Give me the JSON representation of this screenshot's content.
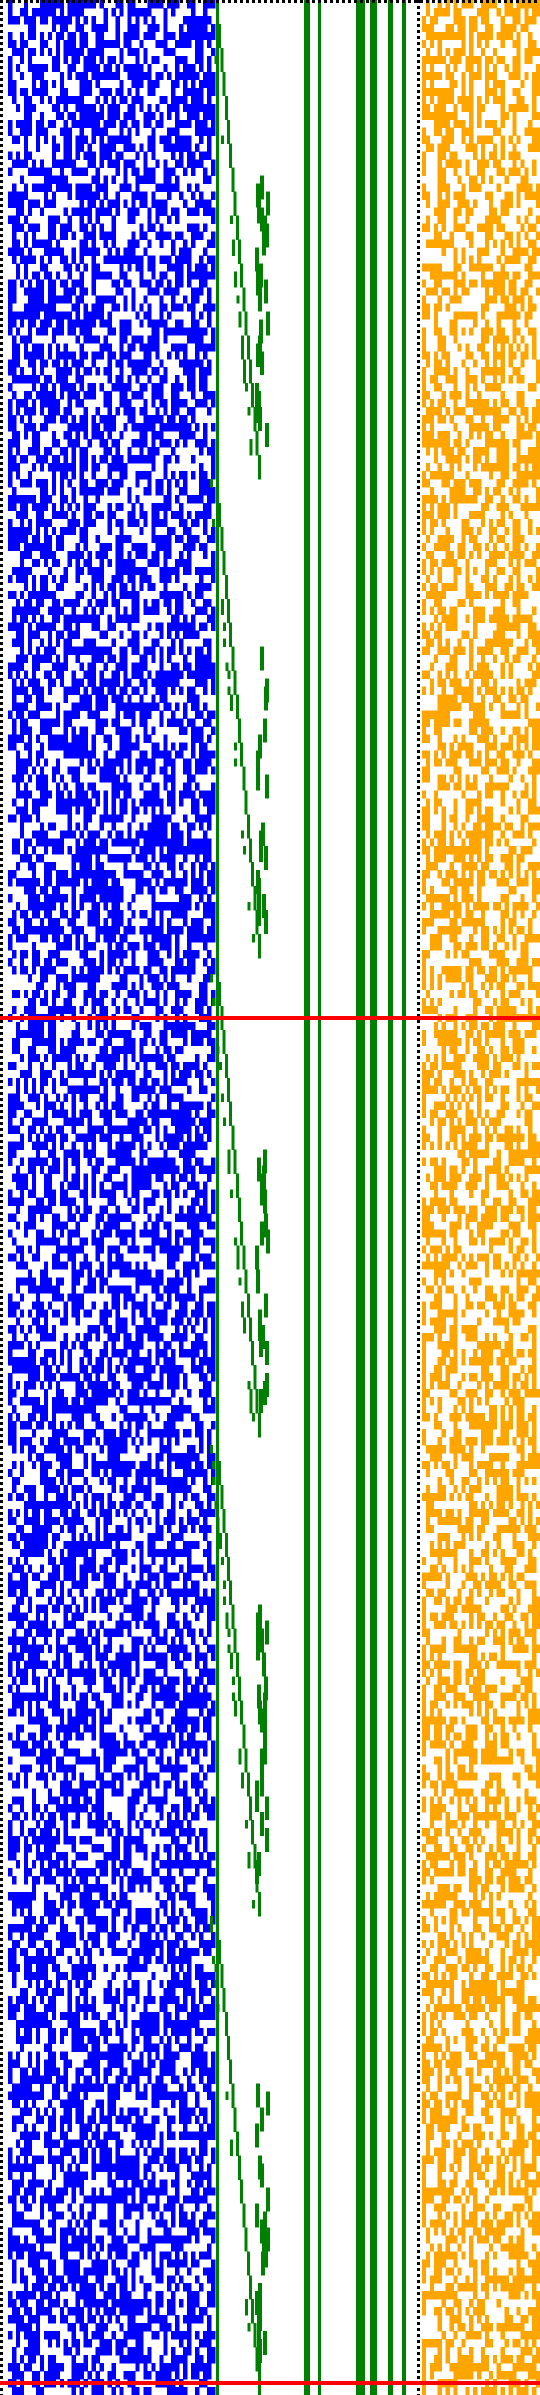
{
  "colors": {
    "background": "#ffffff",
    "blue_field": "#0000ff",
    "green_bars": "#008000",
    "orange_field": "#ffa500",
    "red_markers": "#ff0000",
    "dotted_border": "#000000"
  },
  "panels": [
    {
      "id": "blue-noise-panel",
      "color_key": "blue_field",
      "density": 0.55
    },
    {
      "id": "green-staircase-panel",
      "color_key": "green_bars"
    },
    {
      "id": "orange-noise-panel",
      "color_key": "orange_field",
      "density": 0.5
    }
  ],
  "markers": [
    {
      "id": "red-marker-upper",
      "position_fraction": 0.425
    },
    {
      "id": "red-marker-lower",
      "position_fraction": 0.995
    }
  ],
  "borders": {
    "top": "dotted",
    "left": "dotted",
    "orange_panel_left": "dotted"
  },
  "grid": {
    "rows": 300
  }
}
